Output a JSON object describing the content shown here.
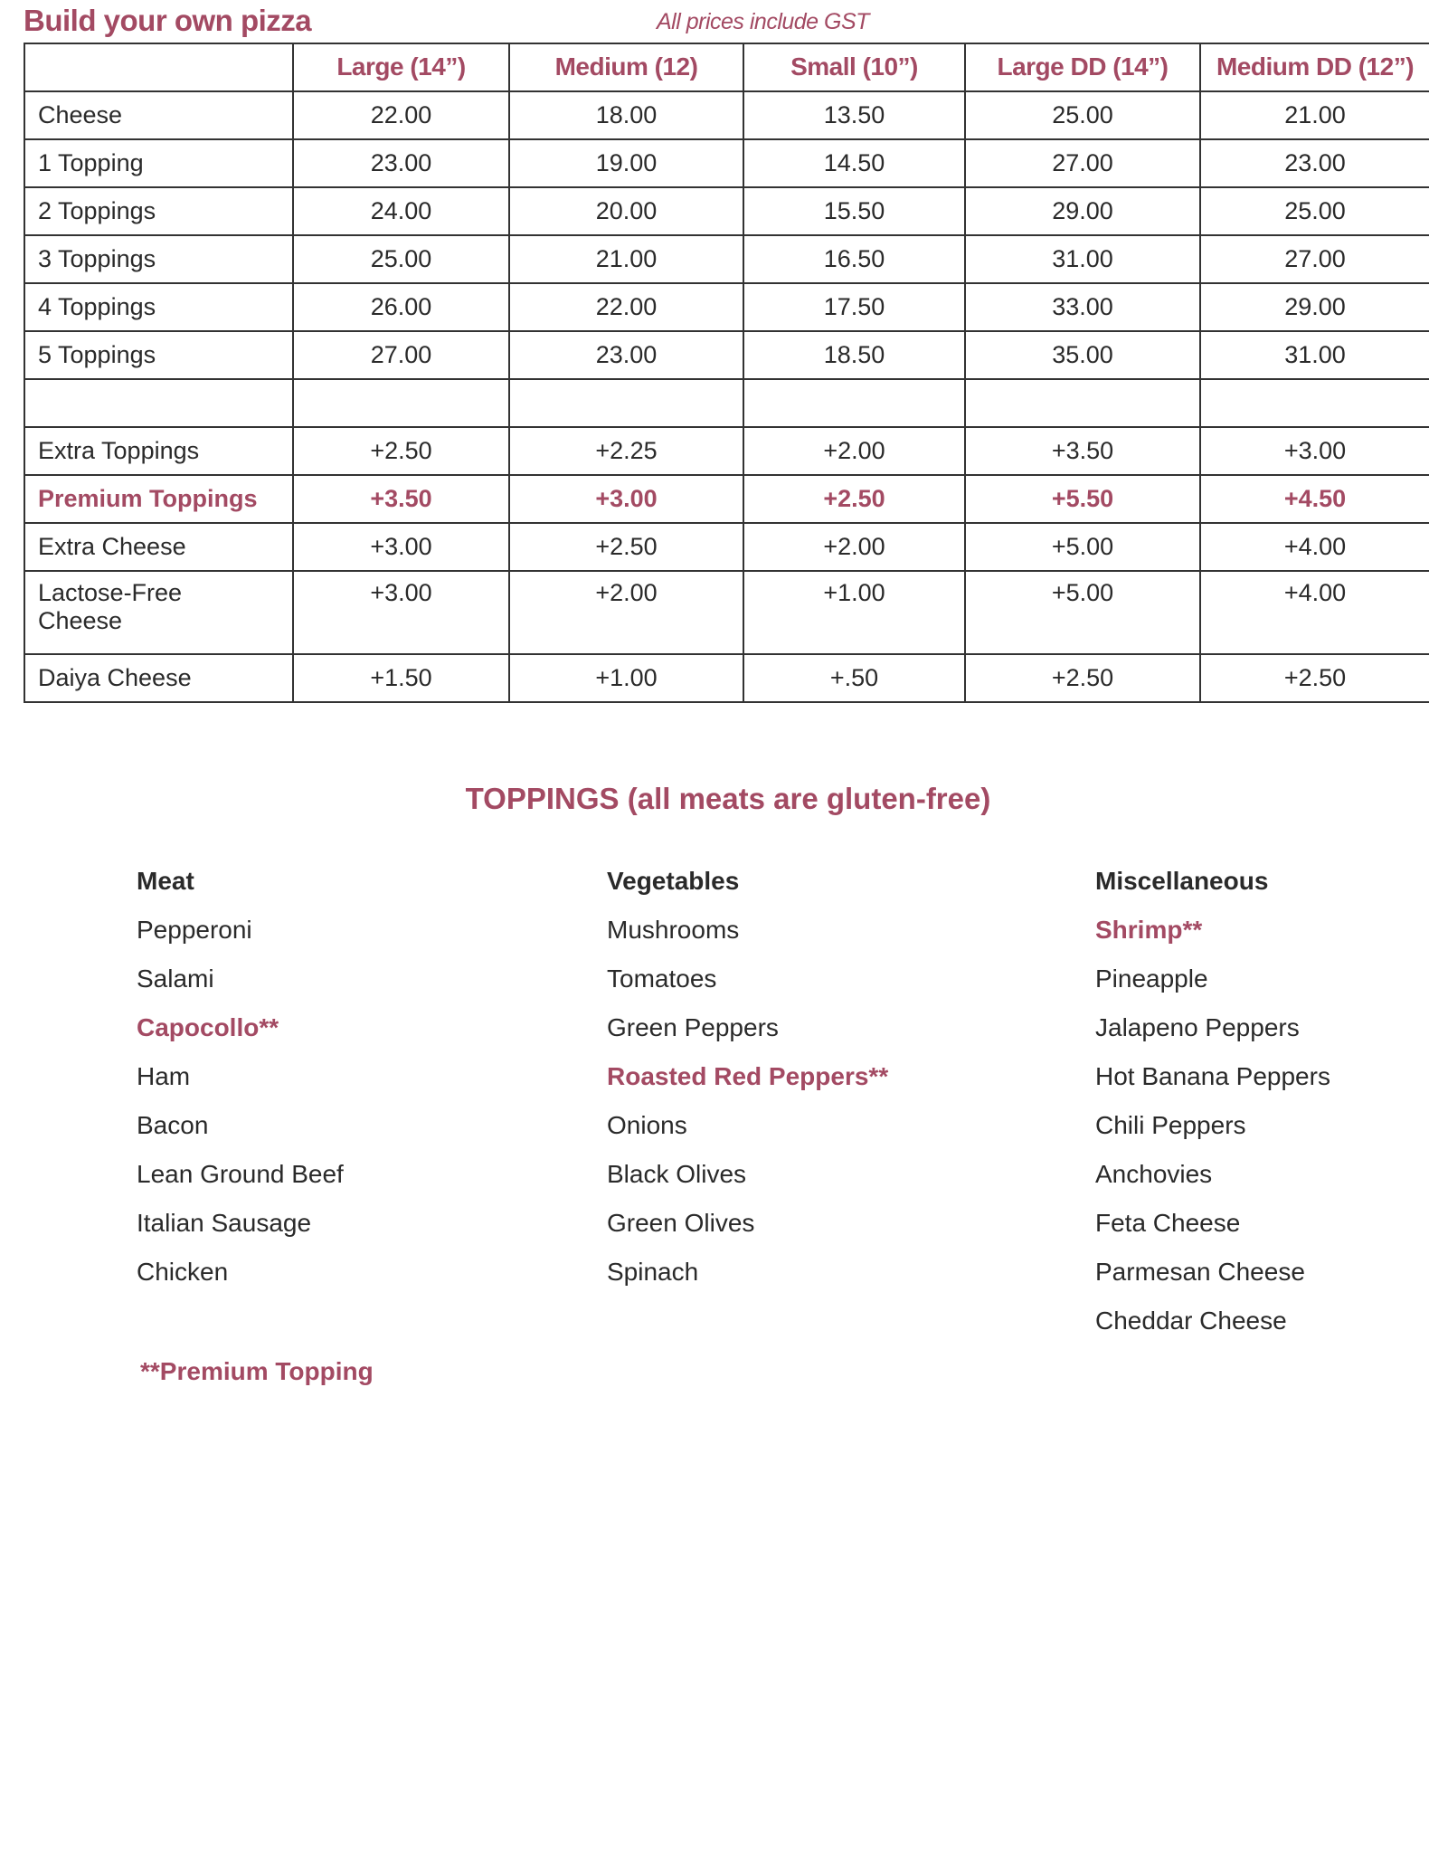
{
  "title": "Build your own pizza",
  "note": "All prices include GST",
  "accent_color": "#a34a63",
  "table": {
    "headers": [
      "",
      "Large (14”)",
      "Medium (12)",
      "Small (10”)",
      "Large DD (14”)",
      "Medium DD (12”)"
    ],
    "rows": [
      {
        "label": "Cheese",
        "values": [
          "22.00",
          "18.00",
          "13.50",
          "25.00",
          "21.00"
        ]
      },
      {
        "label": "1 Topping",
        "values": [
          "23.00",
          "19.00",
          "14.50",
          "27.00",
          "23.00"
        ]
      },
      {
        "label": "2 Toppings",
        "values": [
          "24.00",
          "20.00",
          "15.50",
          "29.00",
          "25.00"
        ]
      },
      {
        "label": "3 Toppings",
        "values": [
          "25.00",
          "21.00",
          "16.50",
          "31.00",
          "27.00"
        ]
      },
      {
        "label": "4 Toppings",
        "values": [
          "26.00",
          "22.00",
          "17.50",
          "33.00",
          "29.00"
        ]
      },
      {
        "label": "5 Toppings",
        "values": [
          "27.00",
          "23.00",
          "18.50",
          "35.00",
          "31.00"
        ]
      },
      {
        "label": "",
        "values": [
          "",
          "",
          "",
          "",
          ""
        ]
      },
      {
        "label": "Extra Toppings",
        "values": [
          "+2.50",
          "+2.25",
          "+2.00",
          "+3.50",
          "+3.00"
        ]
      },
      {
        "label": "Premium Toppings",
        "values": [
          "+3.50",
          "+3.00",
          "+2.50",
          "+5.50",
          "+4.50"
        ],
        "premium": true
      },
      {
        "label": "Extra Cheese",
        "values": [
          "+3.00",
          "+2.50",
          "+2.00",
          "+5.00",
          "+4.00"
        ]
      },
      {
        "label": "Lactose-Free Cheese",
        "values": [
          "+3.00",
          "+2.00",
          "+1.00",
          "+5.00",
          "+4.00"
        ],
        "tall": true
      },
      {
        "label": "Daiya Cheese",
        "values": [
          "+1.50",
          "+1.00",
          "+.50",
          "+2.50",
          "+2.50"
        ]
      }
    ]
  },
  "toppings": {
    "heading": "TOPPINGS (all meats are gluten-free)",
    "columns": [
      {
        "title": "Meat",
        "items": [
          {
            "name": "Pepperoni"
          },
          {
            "name": "Salami"
          },
          {
            "name": "Capocollo**",
            "premium": true
          },
          {
            "name": "Ham"
          },
          {
            "name": "Bacon"
          },
          {
            "name": "Lean Ground Beef"
          },
          {
            "name": "Italian Sausage"
          },
          {
            "name": "Chicken"
          }
        ]
      },
      {
        "title": "Vegetables",
        "items": [
          {
            "name": "Mushrooms"
          },
          {
            "name": "Tomatoes"
          },
          {
            "name": "Green Peppers"
          },
          {
            "name": "Roasted Red Peppers**",
            "premium": true
          },
          {
            "name": "Onions"
          },
          {
            "name": "Black Olives"
          },
          {
            "name": "Green Olives"
          },
          {
            "name": "Spinach"
          }
        ]
      },
      {
        "title": "Miscellaneous",
        "items": [
          {
            "name": "Shrimp**",
            "premium": true
          },
          {
            "name": "Pineapple"
          },
          {
            "name": "Jalapeno Peppers"
          },
          {
            "name": "Hot Banana Peppers"
          },
          {
            "name": "Chili Peppers"
          },
          {
            "name": "Anchovies"
          },
          {
            "name": "Feta Cheese"
          },
          {
            "name": "Parmesan Cheese"
          },
          {
            "name": "Cheddar Cheese"
          }
        ]
      }
    ],
    "footnote": "**Premium Topping"
  }
}
